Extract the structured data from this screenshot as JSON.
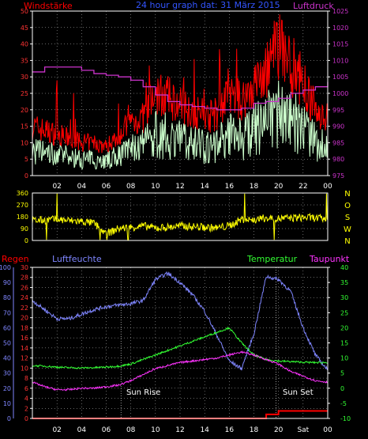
{
  "panel1": {
    "left_label": "Windstärke",
    "title": "24 hour graph dat:  31 März 2015",
    "right_label": "Luftdruck",
    "left_ticks": [
      "0",
      "5",
      "10",
      "15",
      "20",
      "25",
      "30",
      "35",
      "40",
      "45",
      "50"
    ],
    "right_ticks": [
      "975",
      "980",
      "985",
      "990",
      "995",
      "1000",
      "1005",
      "1010",
      "1015",
      "1020",
      "1025"
    ]
  },
  "panel2": {
    "left_ticks": [
      "0",
      "90",
      "180",
      "270",
      "360"
    ],
    "compass": [
      "N",
      "W",
      "S",
      "O",
      "N"
    ]
  },
  "panel3": {
    "label_regen": "Regen",
    "label_luftfeuchte": "Luftfeuchte",
    "label_temperatur": "Temperatur",
    "label_taupunkt": "Taupunkt",
    "regen_ticks": [
      "0",
      "2",
      "4",
      "6",
      "8",
      "10",
      "12",
      "14",
      "16",
      "18",
      "20",
      "22",
      "24",
      "26",
      "28",
      "30"
    ],
    "humidity_ticks": [
      "0",
      "10",
      "20",
      "30",
      "40",
      "50",
      "60",
      "70",
      "80",
      "90",
      "100"
    ],
    "temp_ticks": [
      "-10",
      "-5",
      "0",
      "5",
      "10",
      "15",
      "20",
      "25",
      "30",
      "35",
      "40"
    ],
    "sun_rise": "Sun Rise",
    "sun_set": "Sun Set"
  },
  "x_ticks_top": [
    "02",
    "04",
    "06",
    "08",
    "10",
    "12",
    "14",
    "16",
    "18",
    "20",
    "22",
    "00"
  ],
  "x_ticks_bottom": [
    "02",
    "04",
    "06",
    "08",
    "10",
    "12",
    "14",
    "16",
    "18",
    "20",
    "Sat",
    "00"
  ],
  "colors": {
    "wind_gust": "#ff0000",
    "wind_avg": "#ccffcc",
    "pressure": "#cc33cc",
    "direction": "#ffff00",
    "humidity": "#7f86ff",
    "temperature": "#33ff33",
    "dewpoint": "#ff33ff",
    "rain": "#ff0000",
    "frame": "#ffffff",
    "grid": "#ffffff"
  },
  "chart_data": [
    {
      "type": "line",
      "title": "24 hour graph dat:  31 März 2015",
      "x": [
        0,
        1,
        2,
        3,
        4,
        5,
        6,
        7,
        8,
        9,
        10,
        11,
        12,
        13,
        14,
        15,
        16,
        17,
        18,
        19,
        20,
        21,
        22,
        23,
        24
      ],
      "series": [
        {
          "name": "Windstärke",
          "axis": "left",
          "values": [
            12,
            11,
            10,
            9,
            8,
            8,
            7,
            10,
            13,
            14,
            20,
            19,
            17,
            16,
            14,
            15,
            20,
            18,
            22,
            25,
            32,
            27,
            22,
            16,
            14
          ]
        },
        {
          "name": "Luftdruck",
          "axis": "right",
          "values": [
            1006.5,
            1008,
            1008,
            1008,
            1007,
            1006,
            1005.5,
            1005,
            1004,
            1002,
            999.5,
            997.5,
            996.5,
            996,
            995.5,
            995,
            995,
            995.5,
            997,
            997.5,
            998.5,
            1000,
            1001,
            1002,
            1003.5
          ]
        }
      ],
      "ylim_left": [
        0,
        50
      ],
      "ylim_right": [
        975,
        1025
      ],
      "grid": true
    },
    {
      "type": "line",
      "title": "",
      "x": [
        0,
        1,
        2,
        3,
        4,
        5,
        6,
        7,
        8,
        9,
        10,
        11,
        12,
        13,
        14,
        15,
        16,
        17,
        18,
        19,
        20,
        21,
        22,
        23,
        24
      ],
      "series": [
        {
          "name": "",
          "values": [
            150,
            155,
            160,
            150,
            145,
            130,
            50,
            90,
            100,
            110,
            95,
            100,
            110,
            105,
            100,
            95,
            110,
            160,
            155,
            170,
            165,
            170,
            175,
            170,
            160
          ]
        }
      ],
      "ylim": [
        0,
        360
      ],
      "grid": true
    },
    {
      "type": "line",
      "title": "",
      "x": [
        0,
        1,
        2,
        3,
        4,
        5,
        6,
        7,
        8,
        9,
        10,
        11,
        12,
        13,
        14,
        15,
        16,
        17,
        18,
        19,
        20,
        21,
        22,
        23,
        24
      ],
      "series": [
        {
          "name": "Luftfeuchte",
          "axis": "humidity",
          "values": [
            78,
            72,
            66,
            66,
            69,
            72,
            74,
            75,
            76,
            78,
            92,
            96,
            90,
            82,
            71,
            55,
            38,
            33,
            56,
            94,
            92,
            84,
            60,
            42,
            32
          ]
        },
        {
          "name": "Temperatur",
          "axis": "temperature",
          "values": [
            7.5,
            7.3,
            7,
            6.8,
            6.7,
            6.8,
            7,
            7.3,
            8,
            9.5,
            11,
            12.5,
            14,
            15.5,
            17,
            18.5,
            20,
            15,
            11,
            9.5,
            9,
            8.8,
            8.6,
            8.5,
            8.5
          ]
        },
        {
          "name": "Taupunkt",
          "axis": "temperature",
          "values": [
            2,
            0.5,
            -0.5,
            -0.5,
            0,
            0,
            0.5,
            1,
            2.5,
            4.5,
            6.5,
            7.5,
            8.5,
            9,
            9.5,
            10,
            11,
            12,
            11,
            9.5,
            8,
            5.5,
            4,
            2.5,
            2
          ]
        },
        {
          "name": "Regen",
          "axis": "regen",
          "values": [
            0,
            0,
            0,
            0,
            0,
            0,
            0,
            0,
            0,
            0,
            0,
            0,
            0,
            0,
            0,
            0,
            0,
            0,
            0,
            0.8,
            1.5,
            1.5,
            1.5,
            1.5,
            1.5
          ]
        }
      ],
      "ylim_regen": [
        0,
        30
      ],
      "ylim_humidity": [
        0,
        100
      ],
      "ylim_temperature": [
        -10,
        40
      ],
      "grid": true
    }
  ]
}
